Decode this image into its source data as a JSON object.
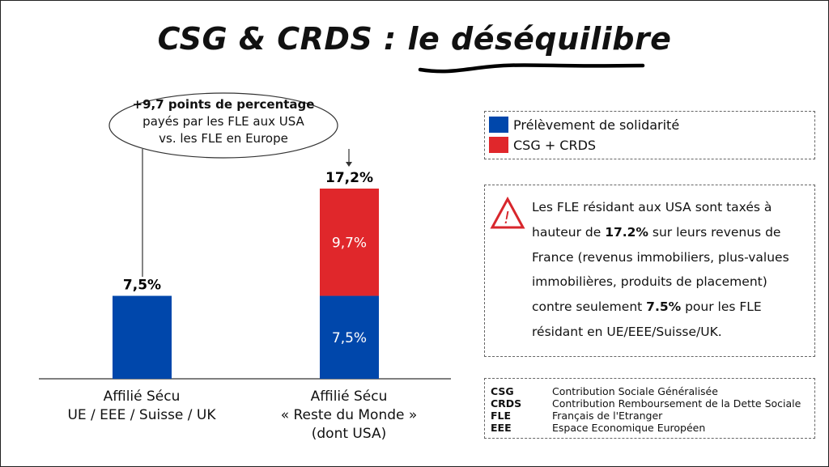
{
  "title": {
    "prefix": "CSG & CRDS : ",
    "underlined": "le déséquilibre"
  },
  "callout": {
    "line1": "+9,7 points de percentage",
    "line2": "payés par les FLE aux USA",
    "line3": "vs. les FLE en Europe"
  },
  "colors": {
    "blue": "#0047AB",
    "red": "#E0272B",
    "warning": "#D8262C"
  },
  "chart_data": {
    "type": "bar",
    "stacked": true,
    "title": "CSG & CRDS : le déséquilibre",
    "xlabel": "",
    "ylabel": "",
    "ylim": [
      0,
      17.2
    ],
    "grid": false,
    "legend_position": "right",
    "categories": [
      [
        "Affilié Sécu",
        "UE / EEE / Suisse / UK"
      ],
      [
        "Affilié Sécu",
        "« Reste du Monde »",
        "(dont USA)"
      ]
    ],
    "series": [
      {
        "name": "Prélèvement de solidarité",
        "color": "#0047AB",
        "values": [
          7.5,
          7.5
        ],
        "labels": [
          null,
          "7,5%"
        ]
      },
      {
        "name": "CSG + CRDS",
        "color": "#E0272B",
        "values": [
          0,
          9.7
        ],
        "labels": [
          null,
          "9,7%"
        ]
      }
    ],
    "totals": [
      7.5,
      17.2
    ],
    "total_labels": [
      "7,5%",
      "17,2%"
    ],
    "annotation": "+9,7 points de percentage payés par les FLE aux USA vs. les FLE en Europe"
  },
  "legend": [
    {
      "label": "Prélèvement de solidarité",
      "color": "#0047AB"
    },
    {
      "label": "CSG + CRDS",
      "color": "#E0272B"
    }
  ],
  "note": {
    "icon": "warning-triangle-icon",
    "lines": [
      [
        "Les FLE résidant aux USA sont taxés à"
      ],
      [
        "hauteur de ",
        "17.2%",
        " sur leurs revenus de"
      ],
      [
        "France (revenus immobiliers, plus-values"
      ],
      [
        "immobilières, produits de placement)"
      ],
      [
        "contre seulement ",
        "7.5%",
        " pour les FLE"
      ],
      [
        "résidant en UE/EEE/Suisse/UK."
      ]
    ]
  },
  "glossary": [
    {
      "abbr": "CSG",
      "full": "Contribution Sociale Généralisée"
    },
    {
      "abbr": "CRDS",
      "full": "Contribution Remboursement de la Dette Sociale"
    },
    {
      "abbr": "FLE",
      "full": "Français de l'Etranger"
    },
    {
      "abbr": "EEE",
      "full": "Espace Economique Européen"
    }
  ]
}
